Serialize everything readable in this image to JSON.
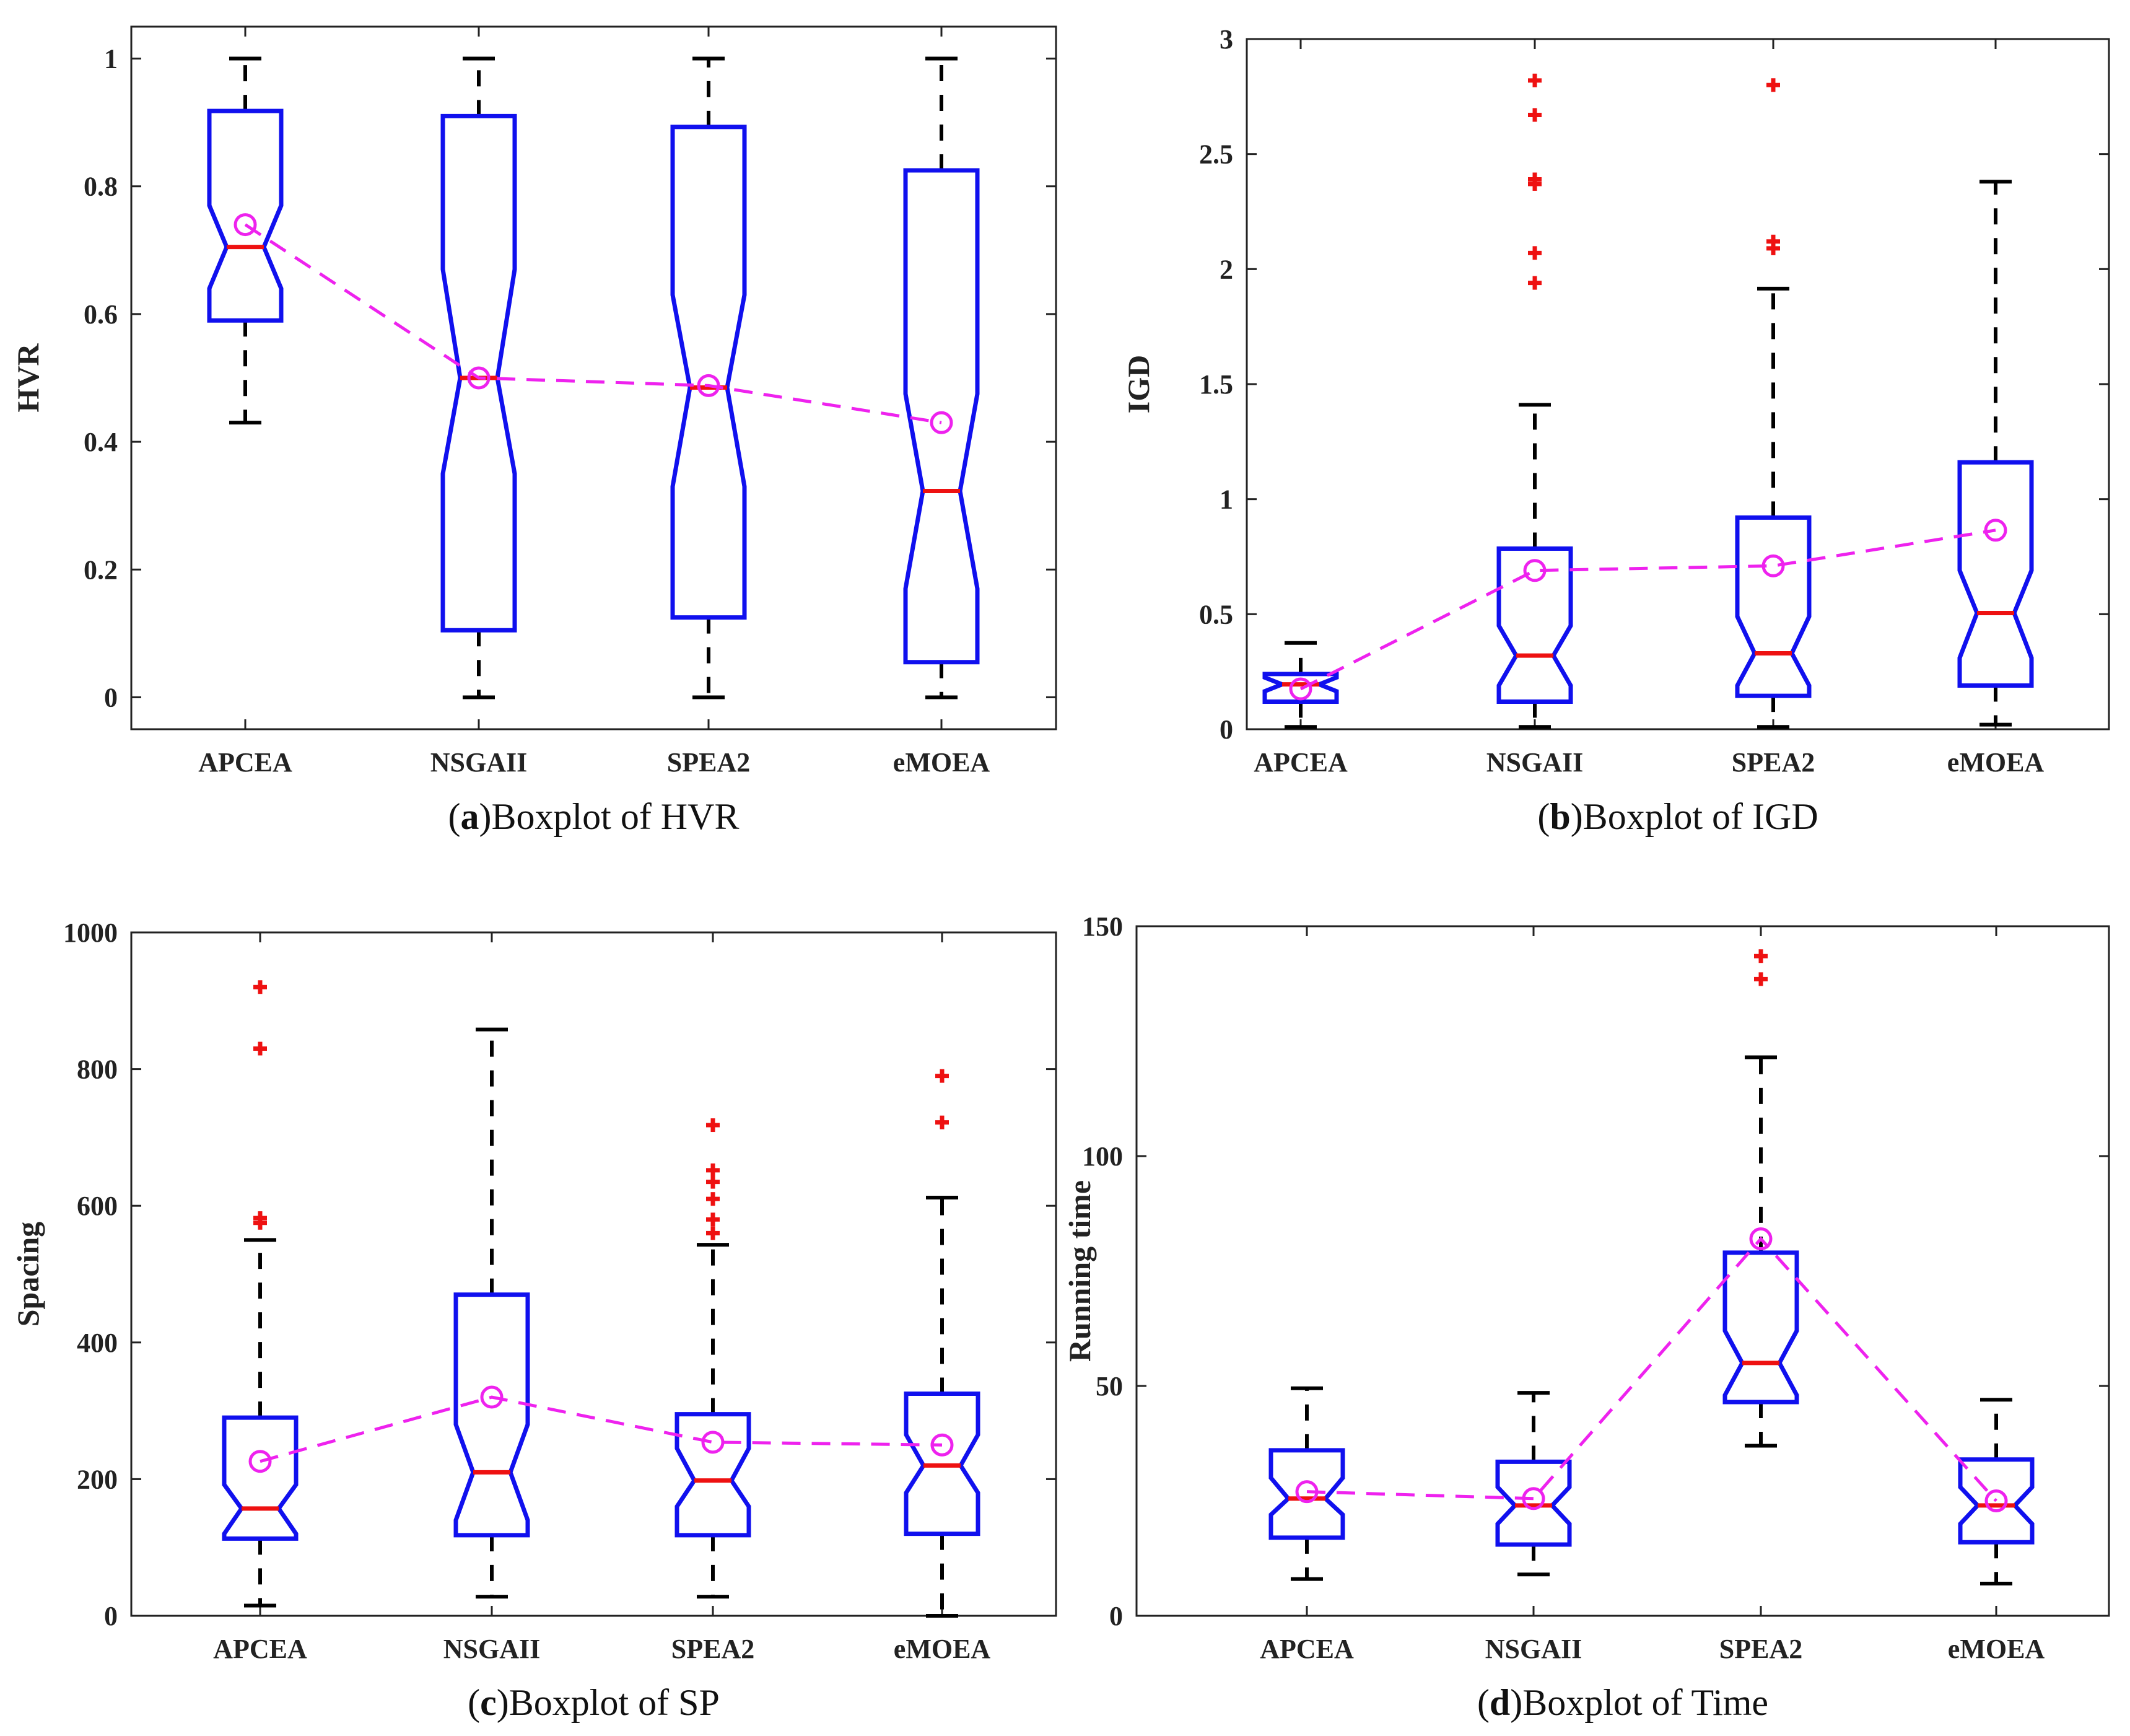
{
  "figure": {
    "colors": {
      "box": "#1010ee",
      "median": "#ee1111",
      "whisker": "#000000",
      "outlier": "#ee1111",
      "mean": "#ee22ee",
      "axis": "#222222"
    }
  },
  "chart_data": [
    {
      "id": "a",
      "type": "boxplot",
      "caption_letter": "a",
      "caption_text": "Boxplot of HVR",
      "ylabel": "HVR",
      "xlabel": "",
      "ylim": [
        -0.05,
        1.05
      ],
      "yticks": [
        0,
        0.2,
        0.4,
        0.6,
        0.8,
        1
      ],
      "ytick_labels": [
        "0",
        "0.2",
        "0.4",
        "0.6",
        "0.8",
        "1"
      ],
      "grid": false,
      "categories": [
        "APCEA",
        "NSGAII",
        "SPEA2",
        "eMOEA"
      ],
      "boxes": [
        {
          "q1": 0.59,
          "median": 0.705,
          "q3": 0.918,
          "whisker_low": 0.43,
          "whisker_high": 1.0,
          "notch_low": 0.64,
          "notch_high": 0.77,
          "mean": 0.74,
          "outliers": []
        },
        {
          "q1": 0.105,
          "median": 0.5,
          "q3": 0.91,
          "whisker_low": 0.0,
          "whisker_high": 1.0,
          "notch_low": 0.35,
          "notch_high": 0.67,
          "mean": 0.5,
          "outliers": []
        },
        {
          "q1": 0.125,
          "median": 0.485,
          "q3": 0.893,
          "whisker_low": 0.0,
          "whisker_high": 1.0,
          "notch_low": 0.33,
          "notch_high": 0.63,
          "mean": 0.488,
          "outliers": []
        },
        {
          "q1": 0.055,
          "median": 0.323,
          "q3": 0.825,
          "whisker_low": 0.0,
          "whisker_high": 1.0,
          "notch_low": 0.17,
          "notch_high": 0.475,
          "mean": 0.43,
          "outliers": []
        }
      ]
    },
    {
      "id": "b",
      "type": "boxplot",
      "caption_letter": "b",
      "caption_text": "Boxplot of IGD",
      "ylabel": "IGD",
      "xlabel": "",
      "ylim": [
        0,
        3
      ],
      "yticks": [
        0,
        0.5,
        1,
        1.5,
        2,
        2.5,
        3
      ],
      "ytick_labels": [
        "0",
        "0.5",
        "1",
        "1.5",
        "2",
        "2.5",
        "3"
      ],
      "grid": false,
      "categories": [
        "APCEA",
        "NSGAII",
        "SPEA2",
        "eMOEA"
      ],
      "boxes": [
        {
          "q1": 0.12,
          "median": 0.195,
          "q3": 0.24,
          "whisker_low": 0.01,
          "whisker_high": 0.375,
          "notch_low": 0.165,
          "notch_high": 0.225,
          "mean": 0.175,
          "outliers": []
        },
        {
          "q1": 0.12,
          "median": 0.32,
          "q3": 0.785,
          "whisker_low": 0.01,
          "whisker_high": 1.41,
          "notch_low": 0.19,
          "notch_high": 0.45,
          "mean": 0.69,
          "outliers": [
            1.94,
            2.07,
            2.37,
            2.39,
            2.67,
            2.82
          ]
        },
        {
          "q1": 0.145,
          "median": 0.33,
          "q3": 0.92,
          "whisker_low": 0.01,
          "whisker_high": 1.915,
          "notch_low": 0.19,
          "notch_high": 0.49,
          "mean": 0.71,
          "outliers": [
            2.09,
            2.12,
            2.8
          ]
        },
        {
          "q1": 0.19,
          "median": 0.505,
          "q3": 1.16,
          "whisker_low": 0.02,
          "whisker_high": 2.38,
          "notch_low": 0.31,
          "notch_high": 0.69,
          "mean": 0.865,
          "outliers": []
        }
      ]
    },
    {
      "id": "c",
      "type": "boxplot",
      "caption_letter": "c",
      "caption_text": "Boxplot of SP",
      "ylabel": "Spacing",
      "xlabel": "",
      "ylim": [
        0,
        1000
      ],
      "yticks": [
        0,
        200,
        400,
        600,
        800,
        1000
      ],
      "ytick_labels": [
        "0",
        "200",
        "400",
        "600",
        "800",
        "1000"
      ],
      "grid": false,
      "categories": [
        "APCEA",
        "NSGAII",
        "SPEA2",
        "eMOEA"
      ],
      "boxes": [
        {
          "q1": 113,
          "median": 157,
          "q3": 290,
          "whisker_low": 15,
          "whisker_high": 550,
          "notch_low": 120,
          "notch_high": 192,
          "mean": 226,
          "outliers": [
            575,
            582,
            830,
            920
          ]
        },
        {
          "q1": 118,
          "median": 210,
          "q3": 470,
          "whisker_low": 28,
          "whisker_high": 858,
          "notch_low": 140,
          "notch_high": 280,
          "mean": 320,
          "outliers": []
        },
        {
          "q1": 118,
          "median": 198,
          "q3": 295,
          "whisker_low": 28,
          "whisker_high": 543,
          "notch_low": 160,
          "notch_high": 245,
          "mean": 254,
          "outliers": [
            560,
            580,
            610,
            635,
            652,
            718
          ]
        },
        {
          "q1": 120,
          "median": 220,
          "q3": 325,
          "whisker_low": 0,
          "whisker_high": 612,
          "notch_low": 180,
          "notch_high": 265,
          "mean": 250,
          "outliers": [
            722,
            790
          ]
        }
      ]
    },
    {
      "id": "d",
      "type": "boxplot",
      "caption_letter": "d",
      "caption_text": "Boxplot of Time",
      "ylabel": "Running time",
      "xlabel": "",
      "ylim": [
        0,
        150
      ],
      "yticks": [
        0,
        50,
        100,
        150
      ],
      "ytick_labels": [
        "0",
        "50",
        "100",
        "150"
      ],
      "grid": false,
      "categories": [
        "APCEA",
        "NSGAII",
        "SPEA2",
        "eMOEA"
      ],
      "boxes": [
        {
          "q1": 17,
          "median": 25.5,
          "q3": 36,
          "whisker_low": 8,
          "whisker_high": 49.5,
          "notch_low": 22,
          "notch_high": 30,
          "mean": 27,
          "outliers": []
        },
        {
          "q1": 15.5,
          "median": 24,
          "q3": 33.5,
          "whisker_low": 9,
          "whisker_high": 48.5,
          "notch_low": 20,
          "notch_high": 28,
          "mean": 25.5,
          "outliers": []
        },
        {
          "q1": 46.5,
          "median": 55,
          "q3": 79,
          "whisker_low": 37,
          "whisker_high": 121.5,
          "notch_low": 48,
          "notch_high": 62,
          "mean": 82,
          "outliers": [
            138.5,
            143.5
          ]
        },
        {
          "q1": 16,
          "median": 24,
          "q3": 34,
          "whisker_low": 7,
          "whisker_high": 47,
          "notch_low": 20,
          "notch_high": 28,
          "mean": 25,
          "outliers": []
        }
      ]
    }
  ]
}
